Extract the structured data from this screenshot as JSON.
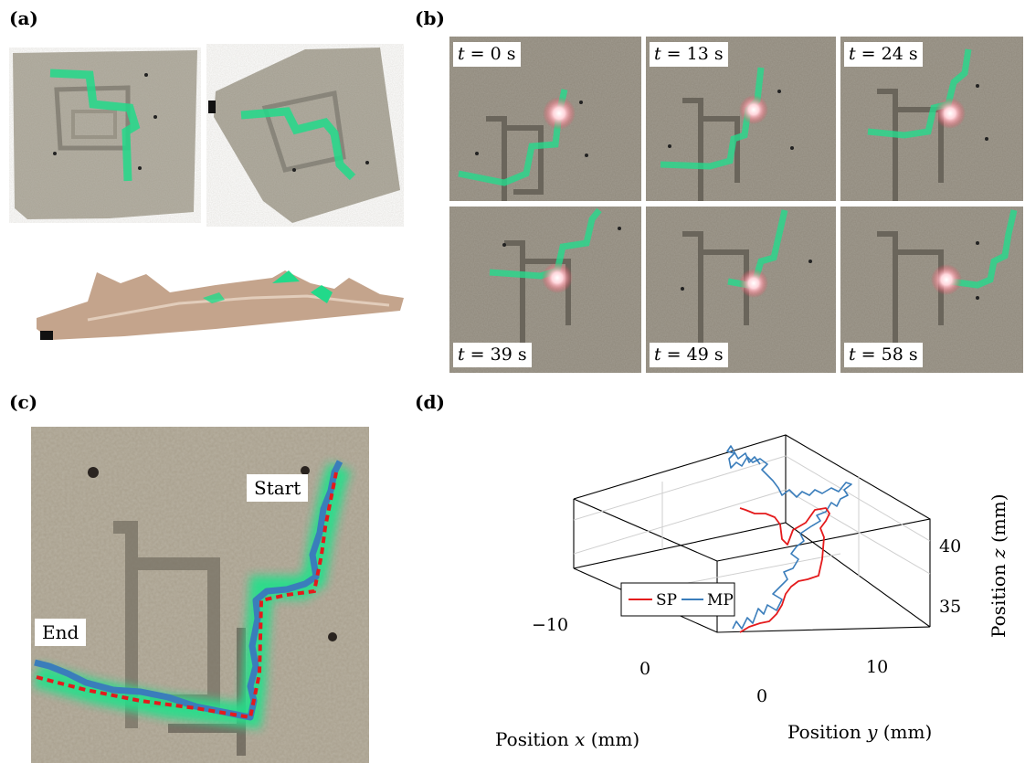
{
  "panels": {
    "a": {
      "label": "(a)"
    },
    "b": {
      "label": "(b)",
      "frames": [
        {
          "t_var": "t",
          "eq": " = ",
          "value": "0",
          "unit": " s"
        },
        {
          "t_var": "t",
          "eq": " = ",
          "value": "13",
          "unit": " s"
        },
        {
          "t_var": "t",
          "eq": " = ",
          "value": "24",
          "unit": " s"
        },
        {
          "t_var": "t",
          "eq": " = ",
          "value": "39",
          "unit": " s"
        },
        {
          "t_var": "t",
          "eq": " = ",
          "value": "49",
          "unit": " s"
        },
        {
          "t_var": "t",
          "eq": " = ",
          "value": "58",
          "unit": " s"
        }
      ]
    },
    "c": {
      "label": "(c)",
      "start_label": "Start",
      "end_label": "End"
    },
    "d": {
      "label": "(d)",
      "x_axis_label_text": "Position ",
      "x_axis_var": "x",
      "x_axis_unit": " (mm)",
      "y_axis_label_text": "Position ",
      "y_axis_var": "y",
      "y_axis_unit": " (mm)",
      "z_axis_label_text": "Position ",
      "z_axis_var": "z",
      "z_axis_unit": " (mm)",
      "x_ticks": [
        "−10",
        "0"
      ],
      "y_ticks": [
        "0",
        "10"
      ],
      "z_ticks": [
        "40",
        "35"
      ],
      "legend": [
        "SP",
        "MP"
      ]
    }
  },
  "chart_data": {
    "type": "line",
    "dimensions": 3,
    "xlabel": "Position x (mm)",
    "ylabel": "Position y (mm)",
    "zlabel": "Position z (mm)",
    "x_ticks": [
      -10,
      0
    ],
    "y_ticks": [
      0,
      10
    ],
    "z_ticks": [
      35,
      40
    ],
    "grid": true,
    "legend_position": "left",
    "series": [
      {
        "name": "SP",
        "color": "#e41a1c"
      },
      {
        "name": "MP",
        "color": "#3a7dbb"
      }
    ]
  },
  "colors": {
    "sp": "#e41a1c",
    "mp": "#3a7dbb",
    "green": "#22d98a",
    "concrete": "#a9a294"
  }
}
